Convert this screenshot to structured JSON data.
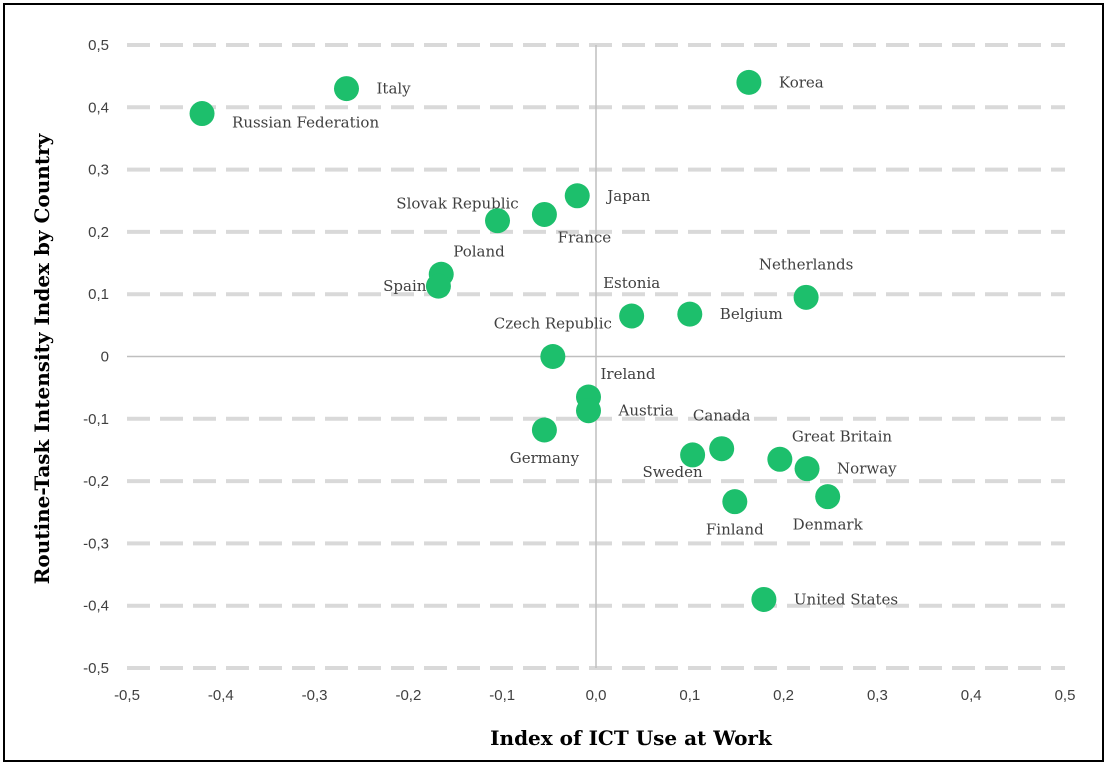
{
  "chart_data": {
    "type": "scatter",
    "title": "",
    "xlabel": "Index of ICT Use at Work",
    "ylabel": "Routine-Task Intensity Index by Country",
    "xlim": [
      -0.5,
      0.5
    ],
    "ylim": [
      -0.5,
      0.5
    ],
    "x_ticks": [
      "-0,5",
      "-0,4",
      "-0,3",
      "-0,2",
      "-0,1",
      "0,0",
      "0,1",
      "0,2",
      "0,3",
      "0,4",
      "0,5"
    ],
    "y_ticks": [
      "0,5",
      "0,4",
      "0,3",
      "0,2",
      "0,1",
      "0",
      "-0,1",
      "-0,2",
      "-0,3",
      "-0,4",
      "-0,5"
    ],
    "grid": "horizontal dashed",
    "legend": "none",
    "marker_color": "#1dbf6c",
    "points": [
      {
        "label": "Italy",
        "x": -0.266,
        "y": 0.43,
        "label_pos": "right"
      },
      {
        "label": "Russian Federation",
        "x": -0.42,
        "y": 0.39,
        "label_pos": "right-below"
      },
      {
        "label": "Korea",
        "x": 0.163,
        "y": 0.44,
        "label_pos": "right"
      },
      {
        "label": "Japan",
        "x": -0.02,
        "y": 0.258,
        "label_pos": "right"
      },
      {
        "label": "Slovak Republic",
        "x": -0.105,
        "y": 0.218,
        "label_pos": "above-left"
      },
      {
        "label": "France",
        "x": -0.055,
        "y": 0.228,
        "label_pos": "below-right"
      },
      {
        "label": "Poland",
        "x": -0.165,
        "y": 0.132,
        "label_pos": "above-right"
      },
      {
        "label": "Spain",
        "x": -0.168,
        "y": 0.113,
        "label_pos": "left"
      },
      {
        "label": "Netherlands",
        "x": 0.224,
        "y": 0.095,
        "label_pos": "above"
      },
      {
        "label": "Estonia",
        "x": 0.038,
        "y": 0.065,
        "label_pos": "above"
      },
      {
        "label": "Belgium",
        "x": 0.1,
        "y": 0.068,
        "label_pos": "right"
      },
      {
        "label": "Czech Republic",
        "x": -0.046,
        "y": 0.0,
        "label_pos": "above"
      },
      {
        "label": "Ireland",
        "x": -0.008,
        "y": -0.065,
        "label_pos": "above-right"
      },
      {
        "label": "Austria",
        "x": -0.008,
        "y": -0.087,
        "label_pos": "right"
      },
      {
        "label": "Germany",
        "x": -0.055,
        "y": -0.118,
        "label_pos": "below"
      },
      {
        "label": "Canada",
        "x": 0.134,
        "y": -0.148,
        "label_pos": "above"
      },
      {
        "label": "Sweden",
        "x": 0.103,
        "y": -0.158,
        "label_pos": "below-left"
      },
      {
        "label": "Great Britain",
        "x": 0.196,
        "y": -0.165,
        "label_pos": "above-right"
      },
      {
        "label": "Norway",
        "x": 0.225,
        "y": -0.18,
        "label_pos": "right"
      },
      {
        "label": "Denmark",
        "x": 0.247,
        "y": -0.225,
        "label_pos": "below"
      },
      {
        "label": "Finland",
        "x": 0.148,
        "y": -0.233,
        "label_pos": "below"
      },
      {
        "label": "United States",
        "x": 0.179,
        "y": -0.39,
        "label_pos": "right"
      }
    ]
  }
}
